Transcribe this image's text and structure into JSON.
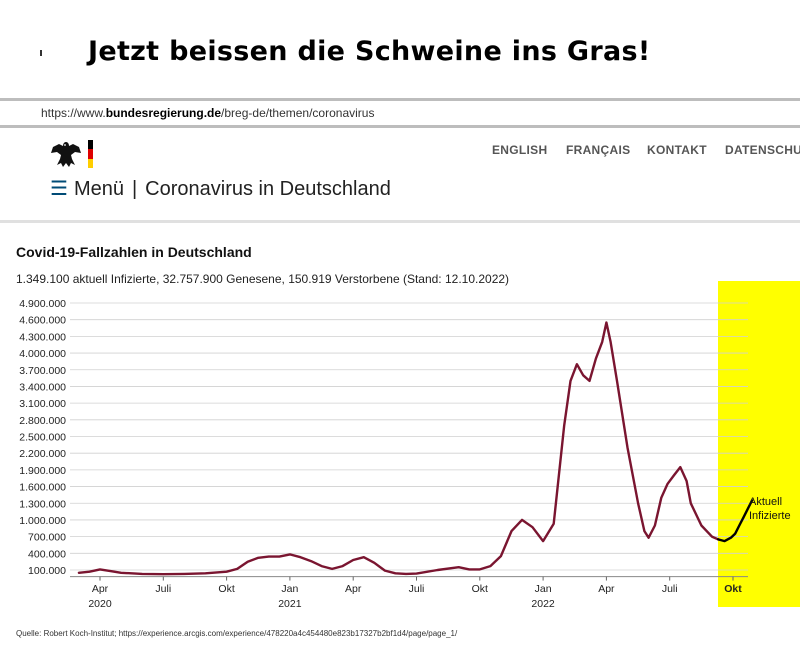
{
  "meme": {
    "headline": "Jetzt beissen die Schweine ins Gras!"
  },
  "browser": {
    "url_prefix": "https://www.",
    "url_domain": "bundesregierung.de",
    "url_path": "/breg-de/themen/coronavirus"
  },
  "site": {
    "nav": [
      "ENGLISH",
      "FRANÇAIS",
      "KONTAKT",
      "DATENSCHUTZ"
    ],
    "menu_label": "Menü",
    "separator": "|",
    "section_title": "Coronavirus in Deutschland",
    "flag_colors": [
      "#000000",
      "#dd0000",
      "#ffce00"
    ]
  },
  "colors": {
    "line": "#7a1530",
    "recent": "#000000",
    "highlight": "#ffff00",
    "grid": "#d0d0d0"
  },
  "chart_data": {
    "type": "line",
    "title": "Covid-19-Fallzahlen in Deutschland",
    "subtitle": "1.349.100 aktuell Infizierte, 32.757.900 Genesene, 150.919 Verstorbene (Stand: 12.10.2022)",
    "ylim": [
      0,
      4900000
    ],
    "yticks": [
      100000,
      400000,
      700000,
      1000000,
      1300000,
      1600000,
      1900000,
      2200000,
      2500000,
      2800000,
      3100000,
      3400000,
      3700000,
      4000000,
      4300000,
      4600000,
      4900000
    ],
    "ytick_labels": [
      "100.000",
      "400.000",
      "700.000",
      "1.000.000",
      "1.300.000",
      "1.600.000",
      "1.900.000",
      "2.200.000",
      "2.500.000",
      "2.800.000",
      "3.100.000",
      "3.400.000",
      "3.700.000",
      "4.000.000",
      "4.300.000",
      "4.600.000",
      "4.900.000"
    ],
    "xticks": [
      {
        "t": 3.0,
        "label": "Apr",
        "year": "2020"
      },
      {
        "t": 6.0,
        "label": "Juli",
        "year": ""
      },
      {
        "t": 9.0,
        "label": "Okt",
        "year": ""
      },
      {
        "t": 12.0,
        "label": "Jan",
        "year": "2021"
      },
      {
        "t": 15.0,
        "label": "Apr",
        "year": ""
      },
      {
        "t": 18.0,
        "label": "Juli",
        "year": ""
      },
      {
        "t": 21.0,
        "label": "Okt",
        "year": ""
      },
      {
        "t": 24.0,
        "label": "Jan",
        "year": "2022"
      },
      {
        "t": 27.0,
        "label": "Apr",
        "year": ""
      },
      {
        "t": 30.0,
        "label": "Juli",
        "year": ""
      },
      {
        "t": 33.0,
        "label": "Okt",
        "year": "",
        "bold": true
      }
    ],
    "series": [
      {
        "style": "main",
        "t": [
          2.0,
          2.5,
          3.0,
          3.5,
          4.0,
          5.0,
          6.0,
          7.0,
          8.0,
          9.0,
          9.5,
          10.0,
          10.5,
          11.0,
          11.5,
          12.0,
          12.5,
          13.0,
          13.5,
          14.0,
          14.5,
          15.0,
          15.5,
          16.0,
          16.5,
          17.0,
          17.5,
          18.0,
          19.0,
          20.0,
          20.5,
          21.0,
          21.5,
          22.0,
          22.5,
          23.0,
          23.5,
          24.0,
          24.5,
          25.0,
          25.3,
          25.6,
          25.9,
          26.2,
          26.5,
          26.8,
          27.0,
          27.2,
          27.5,
          28.0,
          28.5,
          28.8,
          29.0,
          29.3,
          29.6,
          29.9,
          30.2,
          30.5,
          30.8,
          31.0,
          31.5,
          32.0,
          32.3
        ],
        "y": [
          50000,
          70000,
          110000,
          80000,
          50000,
          30000,
          25000,
          30000,
          40000,
          70000,
          120000,
          250000,
          320000,
          340000,
          340000,
          380000,
          330000,
          260000,
          170000,
          120000,
          170000,
          280000,
          330000,
          230000,
          90000,
          40000,
          30000,
          35000,
          100000,
          150000,
          110000,
          110000,
          170000,
          350000,
          800000,
          1000000,
          870000,
          620000,
          930000,
          2700000,
          3500000,
          3800000,
          3600000,
          3500000,
          3900000,
          4200000,
          4550000,
          4200000,
          3500000,
          2300000,
          1300000,
          800000,
          680000,
          900000,
          1400000,
          1650000,
          1800000,
          1950000,
          1700000,
          1300000,
          900000,
          700000,
          650000
        ]
      },
      {
        "name": "Aktuell Infizierte",
        "style": "recent",
        "t": [
          32.3,
          32.6,
          32.9,
          33.1,
          33.3,
          33.5,
          33.7,
          33.9
        ],
        "y": [
          650000,
          620000,
          680000,
          750000,
          900000,
          1050000,
          1200000,
          1349100
        ]
      }
    ],
    "annotation": "Aktuell Infizierte"
  },
  "source": "Quelle: Robert Koch-Institut; https://experience.arcgis.com/experience/478220a4c454480e823b17327b2bf1d4/page/page_1/"
}
